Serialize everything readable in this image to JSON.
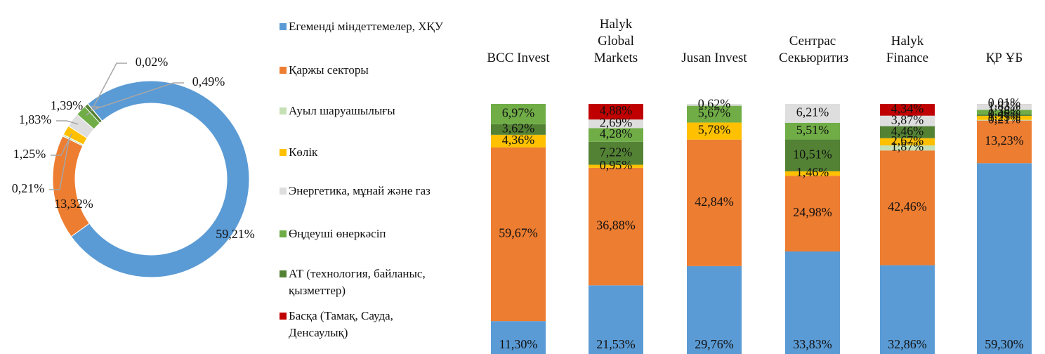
{
  "chart_data": [
    {
      "type": "pie",
      "donut": true,
      "categories": [
        "Егеменді міндеттемелер, ХҚУ",
        "Қаржы секторы",
        "Ауыл шаруашылығы",
        "Көлік",
        "Энергетика, мұнай және газ",
        "Өңдеуші өнеркәсіп",
        "АТ (технология, байланыс, қызметтер)",
        "Басқа (Тамақ, Сауда, Денсаулық)"
      ],
      "colors": [
        "#5b9bd5",
        "#ed7d31",
        "#c5e0b4",
        "#ffc000",
        "#dedede",
        "#70ad47",
        "#548235",
        "#c00000"
      ],
      "values": [
        59.21,
        13.32,
        0.21,
        1.25,
        1.83,
        1.39,
        0.49,
        0.02
      ],
      "value_labels": [
        "59,21%",
        "13,32%",
        "0,21%",
        "1,25%",
        "1,83%",
        "1,39%",
        "0,49%",
        "0,02%"
      ]
    },
    {
      "type": "bar",
      "stacked": "percent",
      "categories": [
        "BCC Invest",
        "Halyk Global Markets",
        "Jusan Invest",
        "Сентрас Секьюритиз",
        "Halyk Finance",
        "ҚР ҰБ"
      ],
      "series": [
        {
          "color": "#5b9bd5",
          "values": [
            11.3,
            21.53,
            29.76,
            33.83,
            32.86,
            59.3
          ],
          "value_labels": [
            "11,30%",
            "21,53%",
            "29,76%",
            "33,83%",
            "32,86%",
            "59,30%"
          ]
        },
        {
          "color": "#ed7d31",
          "values": [
            59.67,
            36.88,
            42.84,
            24.98,
            42.46,
            13.23
          ],
          "value_labels": [
            "59,67%",
            "36,88%",
            "42,84%",
            "24,98%",
            "42,46%",
            "13,23%"
          ]
        },
        {
          "color": "#c5e0b4",
          "values": [
            null,
            null,
            null,
            null,
            1.87,
            0.21
          ],
          "value_labels": [
            null,
            null,
            null,
            null,
            "1,87%",
            "0,21%"
          ]
        },
        {
          "color": "#ffc000",
          "values": [
            4.36,
            0.95,
            5.78,
            1.46,
            2.67,
            1.25
          ],
          "value_labels": [
            "4,36%",
            "0,95%",
            "5,78%",
            "1,46%",
            "2,67%",
            "1,25%"
          ]
        },
        {
          "color": "#dedede",
          "values": [
            null,
            2.69,
            0.62,
            6.21,
            3.87,
            1.83
          ],
          "value_labels": [
            null,
            "2,69%",
            "0,62%",
            "6,21%",
            "3,87%",
            "1,83%"
          ]
        },
        {
          "color": "#70ad47",
          "values": [
            6.97,
            4.28,
            5.67,
            5.51,
            null,
            1.38
          ],
          "value_labels": [
            "6,97%",
            "4,28%",
            "5,67%",
            "5,51%",
            null,
            "1,38%"
          ]
        },
        {
          "color": "#548235",
          "values": [
            3.62,
            7.22,
            null,
            10.51,
            4.46,
            0.48
          ],
          "value_labels": [
            "3,62%",
            "7,22%",
            null,
            "10,51%",
            "4,46%",
            "0,48%"
          ]
        },
        {
          "color": "#c00000",
          "values": [
            null,
            4.88,
            null,
            null,
            4.34,
            0.01
          ],
          "value_labels": [
            null,
            "4,88%",
            null,
            null,
            "4,34%",
            "0,01%"
          ]
        }
      ]
    }
  ]
}
